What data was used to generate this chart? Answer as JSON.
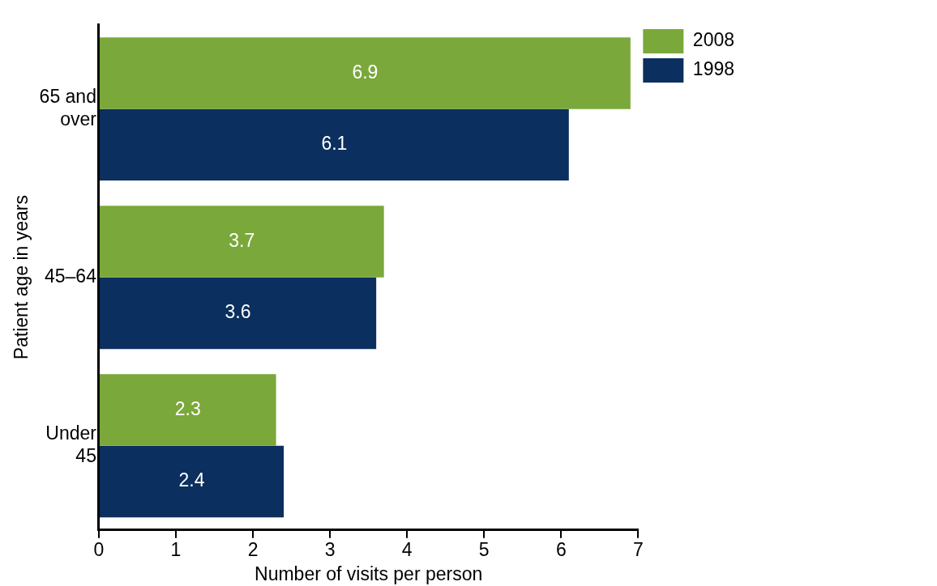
{
  "chart_data": {
    "type": "bar",
    "orientation": "horizontal",
    "xlabel": "Number of visits per person",
    "ylabel": "Patient age in years",
    "categories": [
      "65 and over",
      "45–64",
      "Under 45"
    ],
    "series": [
      {
        "name": "2008",
        "color": "#7aa83a",
        "values": [
          6.9,
          3.7,
          2.3
        ]
      },
      {
        "name": "1998",
        "color": "#0b2f5e",
        "values": [
          6.1,
          3.6,
          2.4
        ]
      }
    ],
    "xlim": [
      0,
      7
    ],
    "xticks": [
      0,
      1,
      2,
      3,
      4,
      5,
      6,
      7
    ],
    "grid": false,
    "legend": "top right",
    "data_labels": true
  }
}
